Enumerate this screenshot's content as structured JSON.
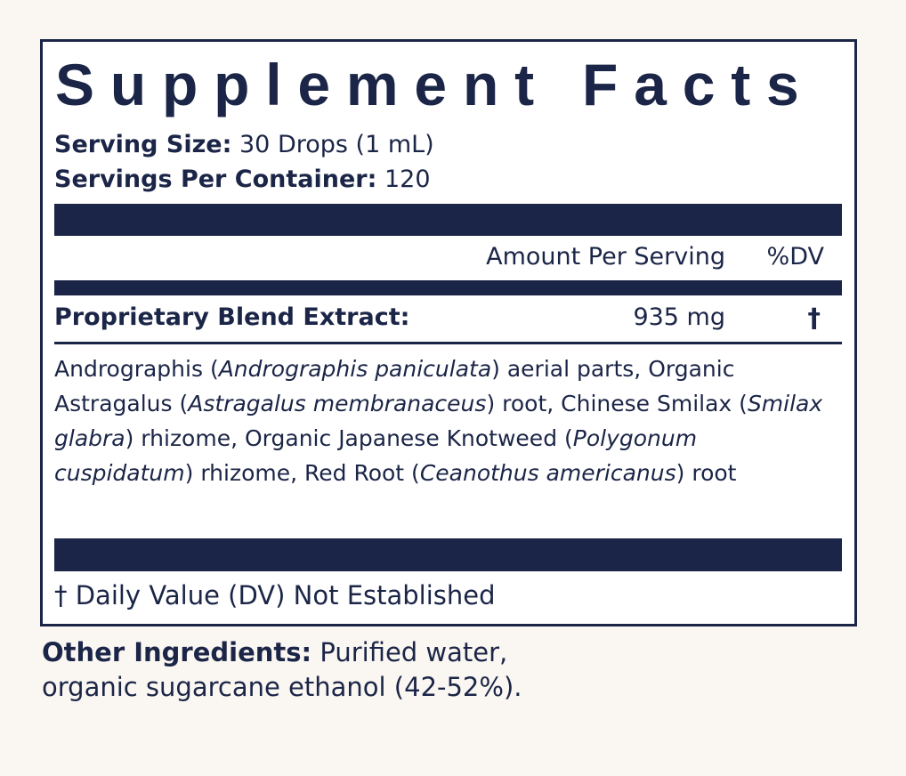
{
  "title": "Supplement Facts",
  "serving_size": {
    "label": "Serving Size:",
    "value": "30 Drops (1 mL)"
  },
  "servings_per_container": {
    "label": "Servings Per Container:",
    "value": "120"
  },
  "header": {
    "amount": "Amount Per Serving",
    "dv": "%DV"
  },
  "blend": {
    "name": "Proprietary Blend Extract:",
    "amount": "935 mg",
    "dv": "†"
  },
  "ingredients": [
    {
      "common": "Andrographis (",
      "latin": "Andrographis paniculata",
      "part": ") aerial parts,"
    },
    {
      "common": "Organic Astragalus (",
      "latin": "Astragalus membranaceus",
      "part": ") root,"
    },
    {
      "common": "Chinese Smilax (",
      "latin": "Smilax glabra",
      "part": ") rhizome,"
    },
    {
      "common": "Organic Japanese Knotweed (",
      "latin": "Polygonum cuspidatum",
      "part": ") rhizome,"
    },
    {
      "common": "Red Root (",
      "latin": "Ceanothus americanus",
      "part": ") root"
    }
  ],
  "footnote": "† Daily Value (DV) Not Established",
  "other_ingredients": {
    "label": "Other Ingredients:",
    "value": "Purified water, organic sugarcane ethanol (42-52%)."
  }
}
